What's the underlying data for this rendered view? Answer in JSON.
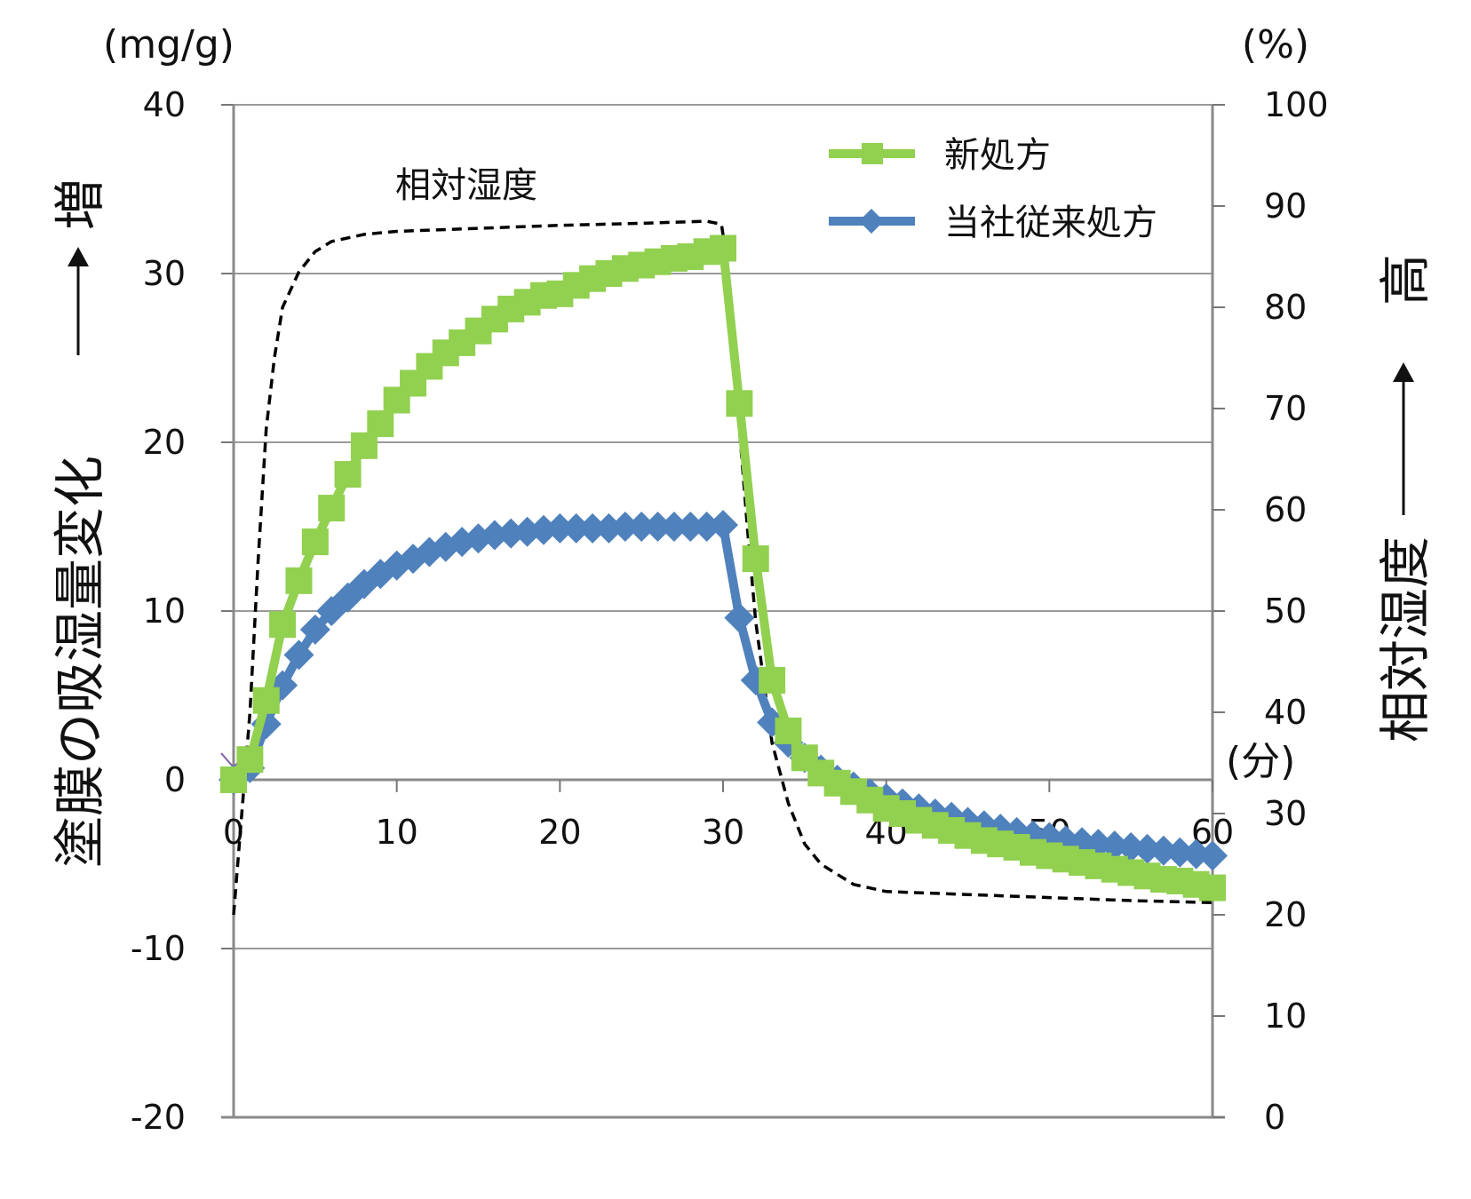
{
  "chart_data": {
    "type": "line",
    "title": "",
    "x_label": "(分)",
    "x_range": [
      0,
      60
    ],
    "x_ticks": [
      "0",
      "10",
      "20",
      "30",
      "40",
      "50",
      "60"
    ],
    "y_left": {
      "label": "塗膜の吸湿量変化",
      "arrow_label": "増",
      "unit": "(mg/g)",
      "range": [
        -20,
        40
      ],
      "ticks": [
        "40",
        "30",
        "20",
        "10",
        "0",
        "-10",
        "-20"
      ]
    },
    "y_right": {
      "label": "相対湿度",
      "arrow_label": "高",
      "unit": "(%)",
      "range": [
        0,
        100
      ],
      "ticks": [
        "100",
        "90",
        "80",
        "70",
        "60",
        "50",
        "40",
        "30",
        "20",
        "10",
        "0"
      ]
    },
    "annotation": "相対湿度",
    "series": [
      {
        "name": "新処方",
        "axis": "left",
        "color": "#92d050",
        "marker": "square",
        "x": [
          0,
          1,
          2,
          3,
          4,
          5,
          6,
          7,
          8,
          9,
          10,
          11,
          12,
          13,
          14,
          15,
          16,
          17,
          18,
          19,
          20,
          21,
          22,
          23,
          24,
          25,
          26,
          27,
          28,
          29,
          30,
          31,
          32,
          33,
          34,
          35,
          36,
          37,
          38,
          39,
          40,
          41,
          42,
          43,
          44,
          45,
          46,
          47,
          48,
          49,
          50,
          51,
          52,
          53,
          54,
          55,
          56,
          57,
          58,
          59,
          60
        ],
        "values": [
          0,
          1.2,
          4.7,
          9.2,
          11.8,
          14.1,
          16.1,
          18.1,
          19.8,
          21.1,
          22.5,
          23.5,
          24.5,
          25.3,
          25.9,
          26.6,
          27.3,
          27.9,
          28.3,
          28.7,
          28.8,
          29.3,
          29.7,
          30.0,
          30.3,
          30.5,
          30.7,
          30.9,
          31.0,
          31.3,
          31.5,
          22.3,
          13.1,
          5.9,
          2.9,
          1.3,
          0.4,
          -0.2,
          -0.7,
          -1.2,
          -1.7,
          -2.0,
          -2.4,
          -2.7,
          -3.0,
          -3.3,
          -3.6,
          -3.8,
          -4.0,
          -4.3,
          -4.5,
          -4.7,
          -4.9,
          -5.1,
          -5.3,
          -5.5,
          -5.7,
          -5.9,
          -6.0,
          -6.2,
          -6.4
        ]
      },
      {
        "name": "当社従来処方",
        "axis": "left",
        "color": "#4f81bd",
        "marker": "diamond",
        "x": [
          0,
          1,
          2,
          3,
          4,
          5,
          6,
          7,
          8,
          9,
          10,
          11,
          12,
          13,
          14,
          15,
          16,
          17,
          18,
          19,
          20,
          21,
          22,
          23,
          24,
          25,
          26,
          27,
          28,
          29,
          30,
          31,
          32,
          33,
          34,
          35,
          36,
          37,
          38,
          39,
          40,
          41,
          42,
          43,
          44,
          45,
          46,
          47,
          48,
          49,
          50,
          51,
          52,
          53,
          54,
          55,
          56,
          57,
          58,
          59,
          60
        ],
        "values": [
          0,
          0.7,
          3.3,
          5.6,
          7.4,
          8.9,
          10.0,
          10.8,
          11.6,
          12.2,
          12.7,
          13.1,
          13.5,
          13.8,
          14.1,
          14.3,
          14.5,
          14.6,
          14.7,
          14.8,
          14.9,
          14.9,
          14.9,
          14.9,
          15.0,
          15.0,
          15.0,
          15.0,
          15.0,
          15.0,
          15.1,
          9.6,
          5.9,
          3.4,
          2.2,
          1.3,
          0.6,
          0.0,
          -0.4,
          -0.8,
          -1.1,
          -1.4,
          -1.7,
          -2.0,
          -2.2,
          -2.5,
          -2.7,
          -2.9,
          -3.1,
          -3.3,
          -3.4,
          -3.6,
          -3.7,
          -3.8,
          -3.9,
          -4.0,
          -4.1,
          -4.2,
          -4.3,
          -4.4,
          -4.5
        ]
      },
      {
        "name": "相対湿度",
        "axis": "right",
        "color": "#000000",
        "style": "dashed",
        "x": [
          0,
          0.5,
          1,
          1.5,
          2,
          2.5,
          3,
          4,
          5,
          6,
          8,
          10,
          15,
          20,
          25,
          29,
          29.9,
          30.2,
          30.6,
          31,
          31.5,
          32,
          33,
          34,
          35,
          36,
          38,
          40,
          45,
          50,
          55,
          60
        ],
        "values": [
          20,
          30,
          40,
          55,
          68,
          75,
          80,
          83.5,
          85.5,
          86.5,
          87.2,
          87.5,
          87.8,
          88.1,
          88.3,
          88.5,
          88.2,
          85,
          77,
          68,
          58,
          49,
          37,
          31,
          27,
          25,
          23,
          22.3,
          22,
          21.7,
          21.4,
          21.2
        ]
      }
    ]
  }
}
